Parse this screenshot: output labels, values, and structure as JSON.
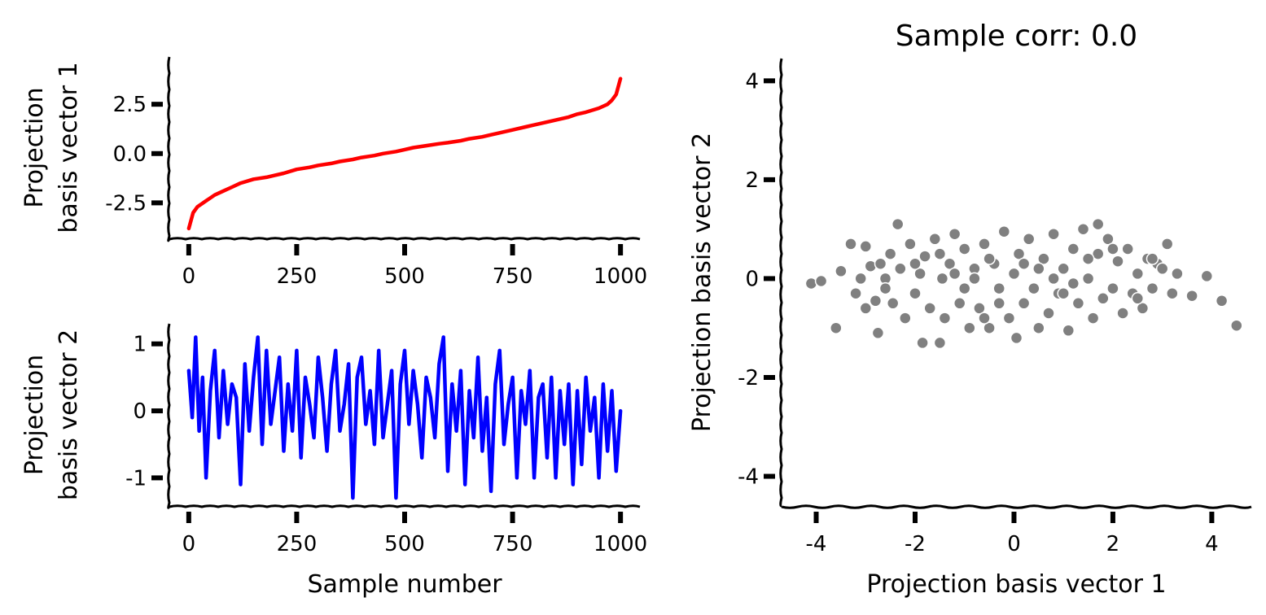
{
  "chart_data": [
    {
      "type": "line",
      "id": "top-left",
      "title": "",
      "xlabel": "",
      "ylabel_lines": [
        "Projection",
        "basis vector 1"
      ],
      "xlim": [
        -45,
        1045
      ],
      "ylim": [
        -4.3,
        4.9
      ],
      "xticks": [
        0,
        250,
        500,
        750,
        1000
      ],
      "xtick_labels": [
        "0",
        "250",
        "500",
        "750",
        "1000"
      ],
      "yticks": [
        2.5,
        0.0,
        -2.5
      ],
      "ytick_labels": [
        "2.5",
        "0.0",
        "-2.5"
      ],
      "series": [
        {
          "name": "basis vector 1",
          "color": "#ff0000",
          "x": [
            0,
            10,
            20,
            40,
            60,
            80,
            100,
            120,
            150,
            180,
            200,
            220,
            250,
            280,
            300,
            330,
            350,
            380,
            400,
            430,
            450,
            480,
            500,
            520,
            550,
            580,
            600,
            630,
            650,
            680,
            700,
            720,
            750,
            780,
            800,
            820,
            850,
            880,
            900,
            920,
            950,
            970,
            980,
            990,
            1000
          ],
          "y": [
            -3.8,
            -3.0,
            -2.7,
            -2.4,
            -2.1,
            -1.9,
            -1.7,
            -1.5,
            -1.3,
            -1.2,
            -1.1,
            -1.0,
            -0.8,
            -0.7,
            -0.6,
            -0.5,
            -0.4,
            -0.3,
            -0.2,
            -0.1,
            0.0,
            0.1,
            0.2,
            0.3,
            0.4,
            0.5,
            0.55,
            0.65,
            0.75,
            0.85,
            0.95,
            1.05,
            1.2,
            1.35,
            1.45,
            1.55,
            1.7,
            1.85,
            2.0,
            2.1,
            2.3,
            2.5,
            2.7,
            3.0,
            3.8
          ]
        }
      ]
    },
    {
      "type": "line",
      "id": "bottom-left",
      "title": "",
      "xlabel": "Sample number",
      "ylabel_lines": [
        "Projection",
        "basis vector 2"
      ],
      "xlim": [
        -45,
        1045
      ],
      "ylim": [
        -1.42,
        1.3
      ],
      "xticks": [
        0,
        250,
        500,
        750,
        1000
      ],
      "xtick_labels": [
        "0",
        "250",
        "500",
        "750",
        "1000"
      ],
      "yticks": [
        1,
        0,
        -1
      ],
      "ytick_labels": [
        "1",
        "0",
        "-1"
      ],
      "series": [
        {
          "name": "basis vector 2",
          "color": "#0000ff",
          "x": [
            0,
            8,
            16,
            24,
            32,
            40,
            50,
            60,
            70,
            80,
            90,
            100,
            110,
            120,
            130,
            140,
            150,
            160,
            170,
            180,
            190,
            200,
            210,
            220,
            230,
            240,
            250,
            260,
            270,
            280,
            290,
            300,
            310,
            320,
            330,
            340,
            350,
            360,
            370,
            380,
            390,
            400,
            410,
            420,
            430,
            440,
            450,
            460,
            470,
            480,
            490,
            500,
            510,
            520,
            530,
            540,
            550,
            560,
            570,
            580,
            590,
            600,
            610,
            620,
            630,
            640,
            650,
            660,
            670,
            680,
            690,
            700,
            710,
            720,
            730,
            740,
            750,
            760,
            770,
            780,
            790,
            800,
            810,
            820,
            830,
            840,
            850,
            860,
            870,
            880,
            890,
            900,
            910,
            920,
            930,
            940,
            950,
            960,
            970,
            980,
            990,
            1000
          ],
          "y": [
            0.6,
            -0.1,
            1.1,
            -0.3,
            0.5,
            -1.0,
            0.3,
            0.9,
            -0.4,
            0.6,
            -0.2,
            0.4,
            0.2,
            -1.1,
            0.7,
            -0.3,
            0.5,
            1.1,
            -0.5,
            0.9,
            -0.2,
            0.3,
            0.8,
            -0.6,
            0.4,
            -0.3,
            0.9,
            -0.7,
            0.5,
            0.1,
            -0.4,
            0.8,
            0.2,
            -0.6,
            0.4,
            0.9,
            -0.3,
            0.1,
            0.7,
            -1.3,
            0.5,
            0.8,
            -0.2,
            0.3,
            -0.5,
            0.9,
            -0.4,
            0.1,
            0.6,
            -1.3,
            0.4,
            0.9,
            -0.2,
            0.6,
            0.1,
            -0.7,
            0.5,
            0.2,
            -0.4,
            0.7,
            1.1,
            -0.9,
            0.4,
            -0.3,
            0.6,
            -1.1,
            0.3,
            -0.4,
            0.8,
            -0.6,
            0.2,
            -1.2,
            0.4,
            0.9,
            -0.5,
            0.1,
            0.5,
            -1.0,
            0.3,
            -0.2,
            0.6,
            -1.0,
            0.2,
            0.4,
            -0.7,
            0.5,
            -1.0,
            0.3,
            -0.5,
            0.4,
            -1.1,
            0.3,
            -0.8,
            0.5,
            -0.3,
            0.2,
            -1.0,
            0.4,
            -0.6,
            0.3,
            -0.9,
            0.0
          ]
        }
      ]
    },
    {
      "type": "scatter",
      "id": "right",
      "title": "Sample corr: 0.0",
      "xlabel": "Projection basis vector 1",
      "ylabel": "Projection basis vector 2",
      "xlim": [
        -4.7,
        4.8
      ],
      "ylim": [
        -4.6,
        4.45
      ],
      "xticks": [
        -4,
        -2,
        0,
        2,
        4
      ],
      "xtick_labels": [
        "-4",
        "-2",
        "0",
        "2",
        "4"
      ],
      "yticks": [
        4,
        2,
        0,
        -2,
        -4
      ],
      "ytick_labels": [
        "4",
        "2",
        "0",
        "-2",
        "-4"
      ],
      "marker_color": "#808080",
      "marker_edge_color": "#ffffff",
      "points": [
        [
          -4.1,
          -0.1
        ],
        [
          -3.9,
          -0.05
        ],
        [
          -3.6,
          -1.0
        ],
        [
          -3.5,
          0.15
        ],
        [
          -3.3,
          0.7
        ],
        [
          -3.2,
          -0.3
        ],
        [
          -3.1,
          0.0
        ],
        [
          -3.0,
          0.65
        ],
        [
          -3.0,
          -0.6
        ],
        [
          -2.9,
          0.25
        ],
        [
          -2.8,
          -0.45
        ],
        [
          -2.75,
          -1.1
        ],
        [
          -2.7,
          0.3
        ],
        [
          -2.6,
          0.0
        ],
        [
          -2.5,
          0.5
        ],
        [
          -2.45,
          -0.5
        ],
        [
          -2.35,
          1.1
        ],
        [
          -2.3,
          0.2
        ],
        [
          -2.2,
          -0.8
        ],
        [
          -2.1,
          0.7
        ],
        [
          -2.0,
          -0.3
        ],
        [
          -1.9,
          0.1
        ],
        [
          -1.85,
          -1.3
        ],
        [
          -1.8,
          0.45
        ],
        [
          -1.7,
          -0.6
        ],
        [
          -1.6,
          0.8
        ],
        [
          -1.5,
          -1.3
        ],
        [
          -1.45,
          0.0
        ],
        [
          -1.4,
          -0.8
        ],
        [
          -1.3,
          0.3
        ],
        [
          -1.2,
          0.9
        ],
        [
          -1.1,
          -0.5
        ],
        [
          -1.0,
          0.6
        ],
        [
          -0.9,
          -1.0
        ],
        [
          -0.8,
          0.2
        ],
        [
          -0.7,
          -0.6
        ],
        [
          -0.6,
          0.7
        ],
        [
          -0.5,
          -1.0
        ],
        [
          -0.4,
          0.3
        ],
        [
          -0.3,
          -0.5
        ],
        [
          -0.2,
          0.95
        ],
        [
          -0.1,
          -0.8
        ],
        [
          0.0,
          0.1
        ],
        [
          0.05,
          -1.2
        ],
        [
          0.1,
          0.5
        ],
        [
          0.2,
          -0.5
        ],
        [
          0.3,
          0.8
        ],
        [
          0.4,
          -0.2
        ],
        [
          0.5,
          -1.0
        ],
        [
          0.6,
          0.4
        ],
        [
          0.7,
          -0.7
        ],
        [
          0.8,
          0.9
        ],
        [
          0.9,
          -0.3
        ],
        [
          1.0,
          0.2
        ],
        [
          1.1,
          -1.05
        ],
        [
          1.2,
          0.6
        ],
        [
          1.3,
          -0.5
        ],
        [
          1.4,
          1.0
        ],
        [
          1.5,
          0.0
        ],
        [
          1.6,
          -0.8
        ],
        [
          1.7,
          0.5
        ],
        [
          1.8,
          -0.4
        ],
        [
          1.9,
          0.8
        ],
        [
          2.0,
          -0.2
        ],
        [
          2.1,
          0.35
        ],
        [
          2.2,
          -0.7
        ],
        [
          2.3,
          0.6
        ],
        [
          2.4,
          -0.3
        ],
        [
          2.5,
          0.1
        ],
        [
          2.6,
          -0.6
        ],
        [
          2.7,
          0.4
        ],
        [
          2.8,
          -0.2
        ],
        [
          2.9,
          0.3
        ],
        [
          3.0,
          0.2
        ],
        [
          3.1,
          0.7
        ],
        [
          3.2,
          -0.3
        ],
        [
          3.3,
          0.1
        ],
        [
          3.6,
          -0.35
        ],
        [
          3.9,
          0.05
        ],
        [
          4.2,
          -0.45
        ],
        [
          4.5,
          -0.95
        ],
        [
          -2.0,
          0.3
        ],
        [
          -1.5,
          0.5
        ],
        [
          -1.0,
          -0.2
        ],
        [
          -0.5,
          0.4
        ],
        [
          0.5,
          0.2
        ],
        [
          1.0,
          -0.3
        ],
        [
          1.5,
          0.4
        ],
        [
          2.0,
          0.6
        ],
        [
          2.5,
          -0.4
        ],
        [
          -0.8,
          0.0
        ],
        [
          0.8,
          0.0
        ],
        [
          0.2,
          0.3
        ],
        [
          -0.3,
          -0.2
        ],
        [
          1.2,
          -0.1
        ],
        [
          -1.2,
          0.1
        ],
        [
          2.8,
          0.4
        ],
        [
          -2.6,
          -0.2
        ],
        [
          1.7,
          1.1
        ],
        [
          -0.6,
          -0.8
        ]
      ]
    }
  ]
}
